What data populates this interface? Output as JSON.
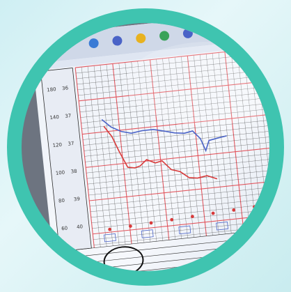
{
  "colors": {
    "ring": "#3fc4b0",
    "background": "#d7f1f4",
    "screen": "#f3f5fb",
    "red_grid": "#e0474f",
    "black_grid": "#2a2a2a",
    "blue_line": "#4a63c7",
    "red_line": "#d83a3a"
  },
  "screen": {
    "toolbar_icons": [
      "back-icon",
      "search-icon",
      "star-icon",
      "globe-icon",
      "mail-icon",
      "print-icon"
    ],
    "axis_labels_left": [
      "180",
      "140",
      "120",
      "100",
      "80",
      "60"
    ],
    "axis_labels_second": [
      "36",
      "37",
      "37",
      "38",
      "39",
      "40"
    ]
  }
}
